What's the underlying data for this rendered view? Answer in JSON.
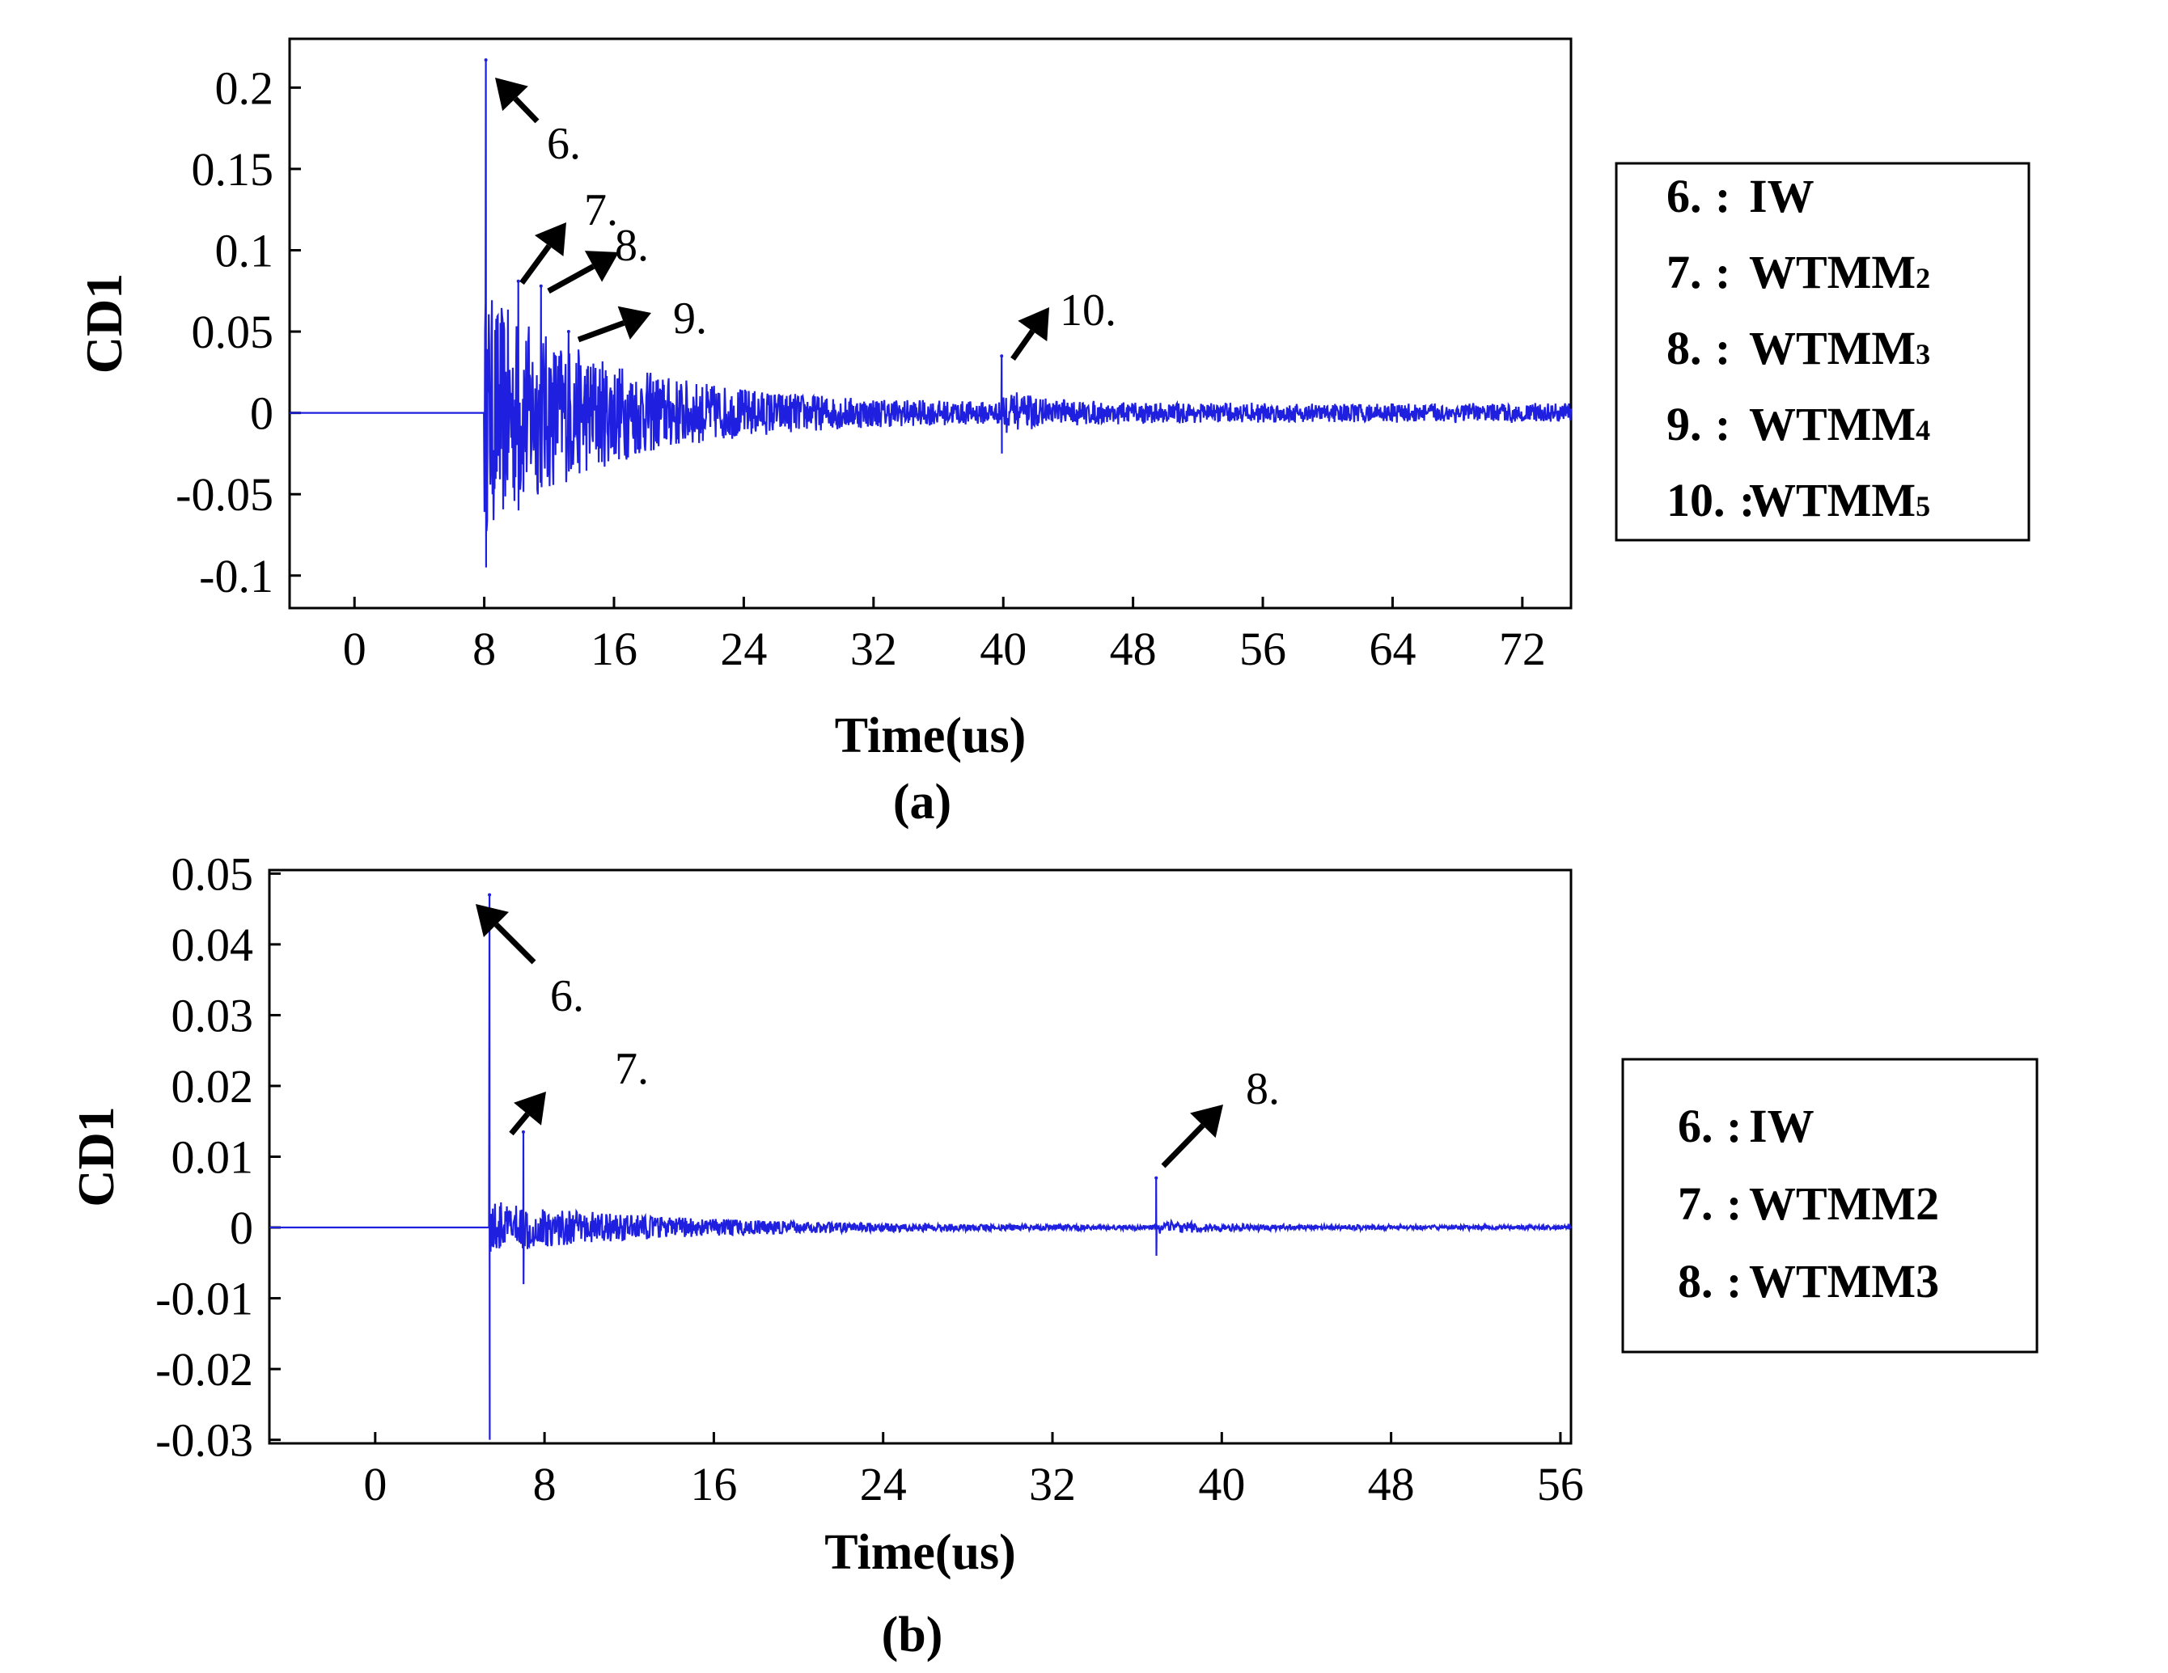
{
  "chart_data": [
    {
      "type": "line",
      "panel_caption": "(a)",
      "xlabel": "Time(us)",
      "ylabel": "CD1",
      "xlim": [
        -4,
        75
      ],
      "ylim": [
        -0.12,
        0.23
      ],
      "x_ticks": [
        0,
        8,
        16,
        24,
        32,
        40,
        48,
        56,
        64,
        72
      ],
      "y_ticks": [
        -0.1,
        -0.05,
        0,
        0.05,
        0.1,
        0.15,
        0.2
      ],
      "y_tick_labels": [
        "-0.1",
        "-0.05",
        "0",
        "0.05",
        "0.1",
        "0.15",
        "0.2"
      ],
      "line_color": "#1f1fe0",
      "signal_start": 8.0,
      "noise_bursts": [
        {
          "center": 8.0,
          "amplitude": 0.07,
          "decay": 8.0
        },
        {
          "center": 40.0,
          "amplitude": 0.008,
          "decay": 3.0
        }
      ],
      "peaks": [
        {
          "label": "6.",
          "x": 8.1,
          "y": 0.217,
          "neg": -0.095
        },
        {
          "label": "7.",
          "x": 10.1,
          "y": 0.081,
          "neg": -0.06
        },
        {
          "label": "8.",
          "x": 11.5,
          "y": 0.078,
          "neg": -0.025
        },
        {
          "label": "9.",
          "x": 13.2,
          "y": 0.05,
          "neg": -0.02
        },
        {
          "label": "10.",
          "x": 39.9,
          "y": 0.035,
          "neg": -0.025
        }
      ],
      "legend": {
        "placement": "right",
        "entries": [
          {
            "key": "6.",
            "text": "IW",
            "sub": ""
          },
          {
            "key": "7.",
            "text": "WTMM",
            "sub": "2"
          },
          {
            "key": "8.",
            "text": "WTMM",
            "sub": "3"
          },
          {
            "key": "9.",
            "text": "WTMM",
            "sub": "4"
          },
          {
            "key": "10.",
            "text": "WTMM",
            "sub": "5"
          }
        ]
      }
    },
    {
      "type": "line",
      "panel_caption": "(b)",
      "xlabel": "Time(us)",
      "ylabel": "CD1",
      "xlim": [
        -5,
        56.5
      ],
      "ylim": [
        -0.0305,
        0.0505
      ],
      "x_ticks": [
        0,
        8,
        16,
        24,
        32,
        40,
        48,
        56
      ],
      "y_ticks": [
        -0.03,
        -0.02,
        -0.01,
        0,
        0.01,
        0.02,
        0.03,
        0.04,
        0.05
      ],
      "y_tick_labels": [
        "-0.03",
        "-0.02",
        "-0.01",
        "0",
        "0.01",
        "0.02",
        "0.03",
        "0.04",
        "0.05"
      ],
      "line_color": "#1f1fe0",
      "signal_start": 5.4,
      "noise_bursts": [
        {
          "center": 5.4,
          "amplitude": 0.0035,
          "decay": 8.0
        },
        {
          "center": 37.0,
          "amplitude": 0.0008,
          "decay": 3.0
        }
      ],
      "peaks": [
        {
          "label": "6.",
          "x": 5.4,
          "y": 0.047,
          "neg": -0.03
        },
        {
          "label": "7.",
          "x": 7.0,
          "y": 0.0135,
          "neg": -0.008
        },
        {
          "label": "8.",
          "x": 36.9,
          "y": 0.007,
          "neg": -0.004
        }
      ],
      "legend": {
        "placement": "right",
        "entries": [
          {
            "key": "6.",
            "text": "IW",
            "sub": ""
          },
          {
            "key": "7.",
            "text": "WTMM2",
            "sub": ""
          },
          {
            "key": "8.",
            "text": "WTMM3",
            "sub": ""
          }
        ]
      }
    }
  ]
}
